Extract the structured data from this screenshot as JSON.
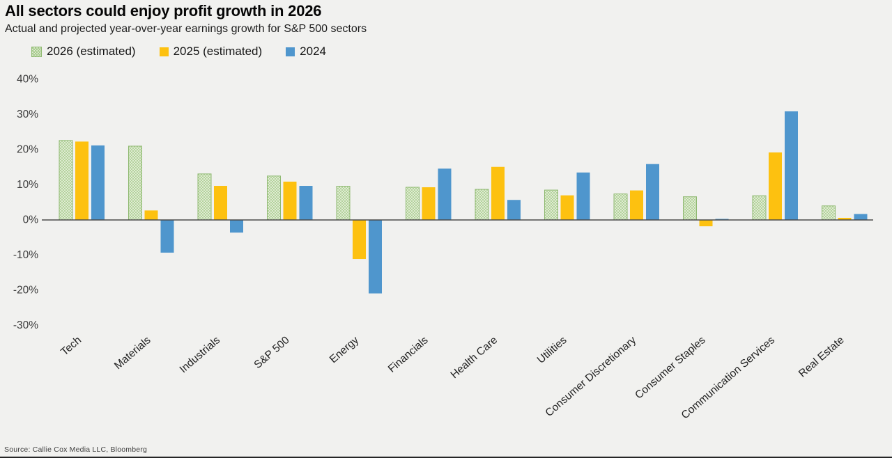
{
  "header": {
    "title": "All sectors could enjoy profit growth in 2026",
    "subtitle": "Actual and projected year-over-year earnings growth for S&P 500 sectors"
  },
  "source": "Source: Callie Cox Media LLC, Bloomberg",
  "chart_data": {
    "type": "bar",
    "title": "All sectors could enjoy profit growth in 2026",
    "subtitle": "Actual and projected year-over-year earnings growth for S&P 500 sectors",
    "categories": [
      "Tech",
      "Materials",
      "Industrials",
      "S&P 500",
      "Energy",
      "Financials",
      "Health Care",
      "Utilities",
      "Consumer Discretionary",
      "Consumer Staples",
      "Communication Services",
      "Real Estate"
    ],
    "series": [
      {
        "name": "2026 (estimated)",
        "pattern": "dots",
        "fill_bg": "#dfecd2",
        "fill_dot": "#a6ca8c",
        "stroke": "#8fb971",
        "values": [
          22.6,
          21.0,
          13.1,
          12.5,
          9.6,
          9.3,
          8.7,
          8.5,
          7.4,
          6.6,
          6.9,
          4.0
        ]
      },
      {
        "name": "2025 (estimated)",
        "color": "#fdc110",
        "values": [
          22.3,
          2.7,
          9.7,
          10.9,
          -11.1,
          9.3,
          15.1,
          7.0,
          8.4,
          -1.8,
          19.2,
          0.6
        ]
      },
      {
        "name": "2024",
        "color": "#4f96cd",
        "values": [
          21.2,
          -9.3,
          -3.6,
          9.7,
          -20.9,
          14.6,
          5.7,
          13.5,
          15.9,
          0.3,
          30.9,
          1.7
        ]
      }
    ],
    "xlabel": "",
    "ylabel": "",
    "yticks": [
      40,
      30,
      20,
      10,
      0,
      -10,
      -20,
      -30
    ],
    "ytick_suffix": "%",
    "ylim": [
      -35,
      44
    ],
    "grid": false,
    "legend_position": "top-left",
    "axis_color": "#4a4a4a",
    "background_color": "#f1f1ef"
  }
}
